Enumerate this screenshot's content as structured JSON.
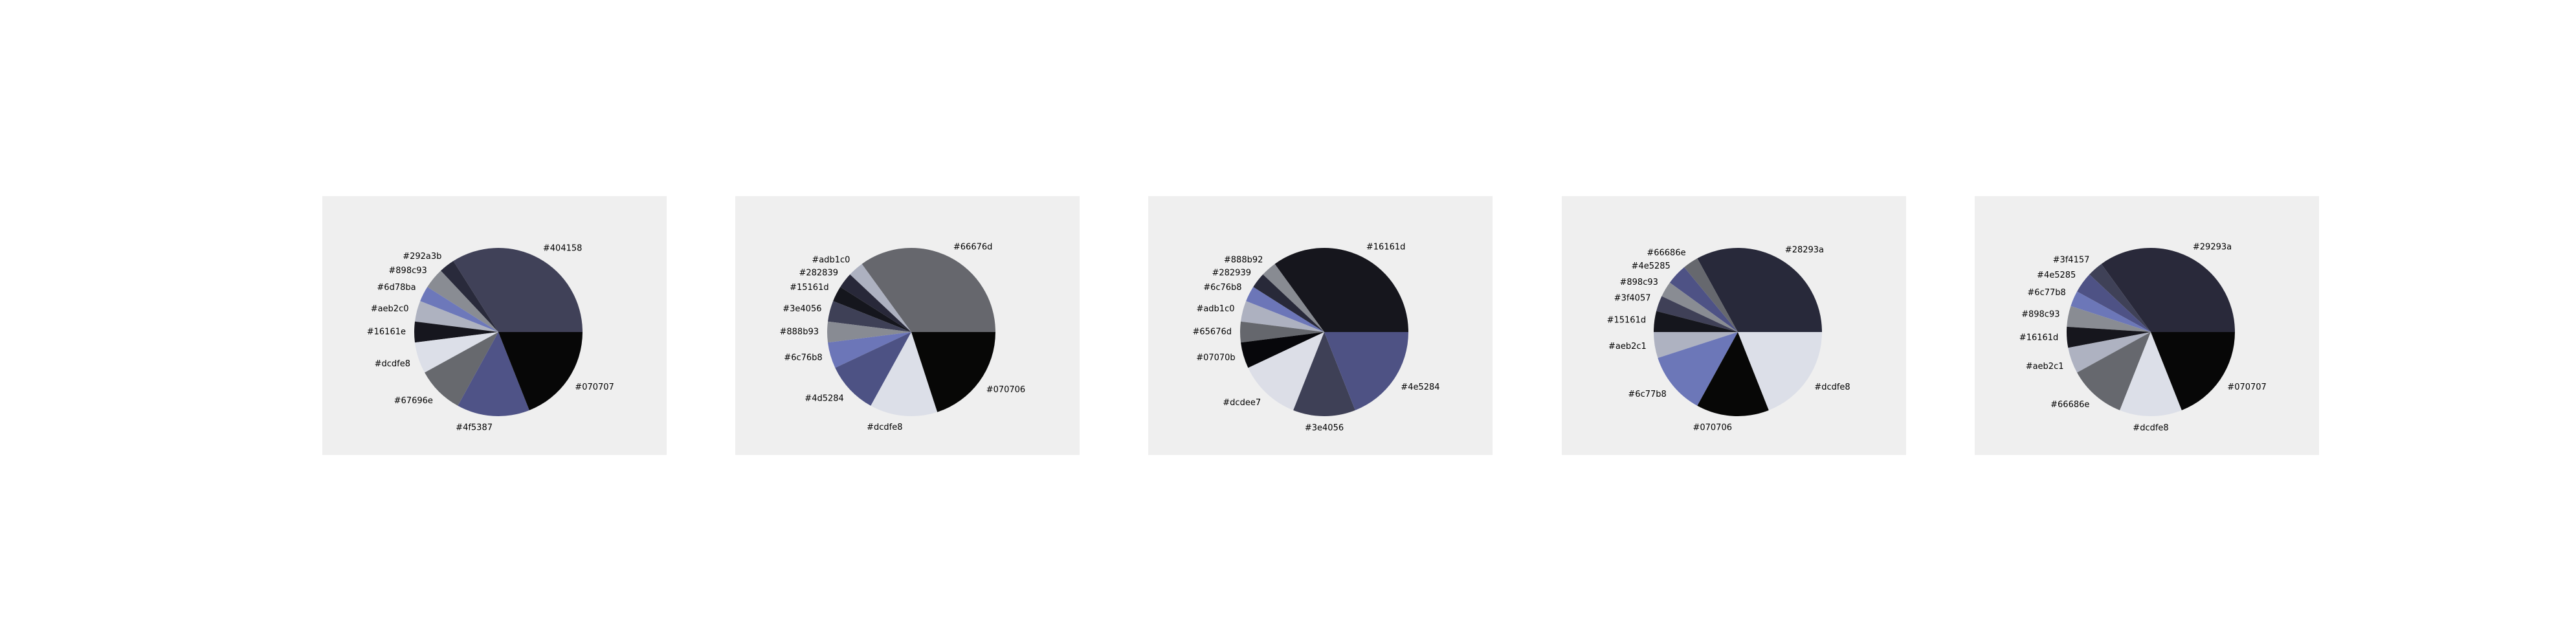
{
  "chart_data": [
    {
      "type": "pie",
      "slices": [
        {
          "label": "#404158",
          "color": "#404158",
          "value": 34.0
        },
        {
          "label": "#292a3b",
          "color": "#292a3b",
          "value": 3.0
        },
        {
          "label": "#898c93",
          "color": "#898c93",
          "value": 4.0
        },
        {
          "label": "#6d78ba",
          "color": "#6d78ba",
          "value": 3.0
        },
        {
          "label": "#aeb2c0",
          "color": "#aeb2c0",
          "value": 4.0
        },
        {
          "label": "#16161e",
          "color": "#16161e",
          "value": 4.0
        },
        {
          "label": "#dcdfe8",
          "color": "#dcdfe8",
          "value": 6.0
        },
        {
          "label": "#67696e",
          "color": "#67696e",
          "value": 9.0
        },
        {
          "label": "#4f5387",
          "color": "#4f5387",
          "value": 14.0
        },
        {
          "label": "#070707",
          "color": "#070707",
          "value": 19.0
        }
      ]
    },
    {
      "type": "pie",
      "slices": [
        {
          "label": "#66676d",
          "color": "#66676d",
          "value": 35.0
        },
        {
          "label": "#adb1c0",
          "color": "#adb1c0",
          "value": 3.0
        },
        {
          "label": "#282839",
          "color": "#282839",
          "value": 3.0
        },
        {
          "label": "#15161d",
          "color": "#15161d",
          "value": 3.0
        },
        {
          "label": "#3e4056",
          "color": "#3e4056",
          "value": 4.0
        },
        {
          "label": "#888b93",
          "color": "#888b93",
          "value": 4.0
        },
        {
          "label": "#6c76b8",
          "color": "#6c76b8",
          "value": 5.0
        },
        {
          "label": "#4d5284",
          "color": "#4d5284",
          "value": 10.0
        },
        {
          "label": "#dcdfe8",
          "color": "#dcdfe8",
          "value": 13.0
        },
        {
          "label": "#070706",
          "color": "#070706",
          "value": 20.0
        }
      ]
    },
    {
      "type": "pie",
      "slices": [
        {
          "label": "#16161d",
          "color": "#16161d",
          "value": 35.0
        },
        {
          "label": "#888b92",
          "color": "#888b92",
          "value": 3.0
        },
        {
          "label": "#282939",
          "color": "#282939",
          "value": 3.0
        },
        {
          "label": "#6c76b8",
          "color": "#6c76b8",
          "value": 3.0
        },
        {
          "label": "#adb1c0",
          "color": "#adb1c0",
          "value": 4.0
        },
        {
          "label": "#65676d",
          "color": "#65676d",
          "value": 4.0
        },
        {
          "label": "#07070b",
          "color": "#07070b",
          "value": 5.0
        },
        {
          "label": "#dcdee7",
          "color": "#dcdee7",
          "value": 12.0
        },
        {
          "label": "#3e4056",
          "color": "#3e4056",
          "value": 12.0
        },
        {
          "label": "#4e5284",
          "color": "#4e5284",
          "value": 19.0
        }
      ]
    },
    {
      "type": "pie",
      "slices": [
        {
          "label": "#28293a",
          "color": "#28293a",
          "value": 33.0
        },
        {
          "label": "#66686e",
          "color": "#66686e",
          "value": 3.0
        },
        {
          "label": "#4e5285",
          "color": "#4e5285",
          "value": 4.0
        },
        {
          "label": "#898c93",
          "color": "#898c93",
          "value": 3.0
        },
        {
          "label": "#3f4057",
          "color": "#3f4057",
          "value": 3.0
        },
        {
          "label": "#15161d",
          "color": "#15161d",
          "value": 4.0
        },
        {
          "label": "#aeb2c1",
          "color": "#aeb2c1",
          "value": 5.0
        },
        {
          "label": "#6c77b8",
          "color": "#6c77b8",
          "value": 12.0
        },
        {
          "label": "#070706",
          "color": "#070706",
          "value": 14.0
        },
        {
          "label": "#dcdfe8",
          "color": "#dcdfe8",
          "value": 19.0
        }
      ]
    },
    {
      "type": "pie",
      "slices": [
        {
          "label": "#29293a",
          "color": "#29293a",
          "value": 35.0
        },
        {
          "label": "#3f4157",
          "color": "#3f4157",
          "value": 3.0
        },
        {
          "label": "#4e5285",
          "color": "#4e5285",
          "value": 4.0
        },
        {
          "label": "#6c77b8",
          "color": "#6c77b8",
          "value": 3.0
        },
        {
          "label": "#898c93",
          "color": "#898c93",
          "value": 4.0
        },
        {
          "label": "#16161d",
          "color": "#16161d",
          "value": 4.0
        },
        {
          "label": "#aeb2c1",
          "color": "#aeb2c1",
          "value": 5.0
        },
        {
          "label": "#66686e",
          "color": "#66686e",
          "value": 11.0
        },
        {
          "label": "#dcdfe8",
          "color": "#dcdfe8",
          "value": 12.0
        },
        {
          "label": "#070707",
          "color": "#070707",
          "value": 19.0
        }
      ]
    }
  ]
}
